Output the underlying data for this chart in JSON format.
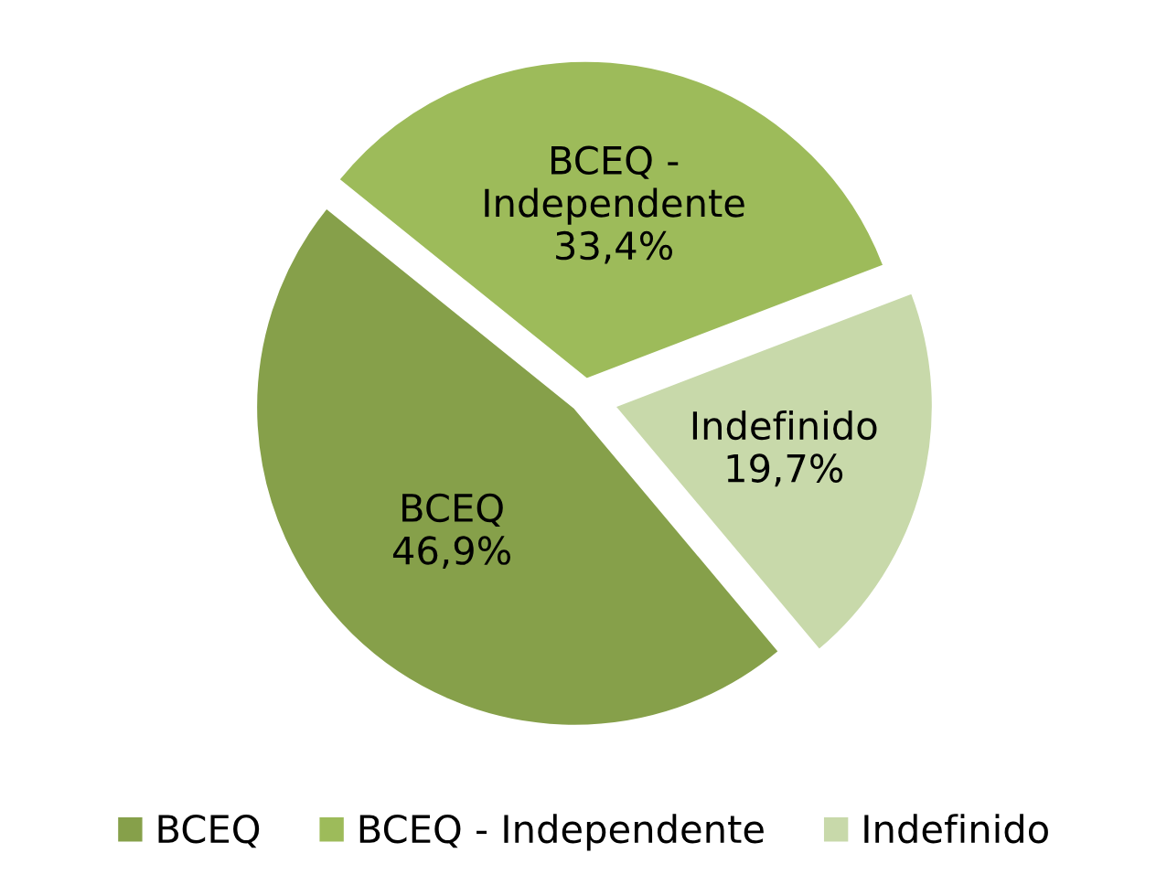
{
  "chart_data": {
    "type": "pie",
    "categories": [
      "BCEQ",
      "BCEQ - Independente",
      "Indefinido"
    ],
    "values": [
      46.9,
      33.4,
      19.7
    ],
    "value_labels": [
      "46,9%",
      "33,4%",
      "19,7%"
    ],
    "colors": [
      "#86a04a",
      "#9dbb5a",
      "#c8d9aa"
    ],
    "legend": "bottom"
  }
}
